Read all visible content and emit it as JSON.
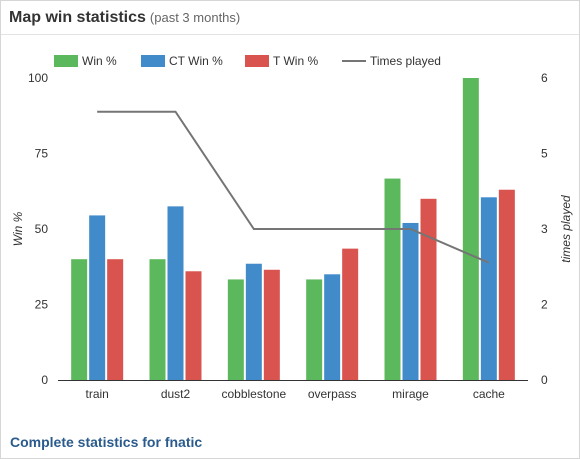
{
  "header": {
    "title": "Map win statistics",
    "subtitle": "(past 3 months)"
  },
  "footer": {
    "link_text": "Complete statistics for fnatic"
  },
  "colors": {
    "win": "#5cb85c",
    "ct": "#428bca",
    "t": "#d9534f",
    "times": "#757575"
  },
  "chart_data": {
    "type": "bar",
    "categories": [
      "train",
      "dust2",
      "cobblestone",
      "overpass",
      "mirage",
      "cache"
    ],
    "series": [
      {
        "name": "Win %",
        "kind": "bar",
        "axis": "left",
        "values": [
          40,
          40,
          33.3,
          33.3,
          66.7,
          100
        ]
      },
      {
        "name": "CT Win %",
        "kind": "bar",
        "axis": "left",
        "values": [
          54.5,
          57.5,
          38.5,
          35,
          52,
          60.5
        ]
      },
      {
        "name": "T Win %",
        "kind": "bar",
        "axis": "left",
        "values": [
          40,
          36,
          36.5,
          43.5,
          60,
          63
        ]
      },
      {
        "name": "Times played",
        "kind": "line",
        "axis": "right",
        "values": [
          5.33,
          5.33,
          3,
          3,
          3,
          2.33
        ]
      }
    ],
    "ylabel": "Win %",
    "y2label": "times played",
    "ylim": [
      0,
      100
    ],
    "y2lim": [
      0,
      6
    ],
    "yticks": [
      "0",
      "25",
      "50",
      "75",
      "100"
    ],
    "y2ticks": [
      "0",
      "2",
      "3",
      "5",
      "6"
    ],
    "grid": false,
    "legend_position": "top"
  }
}
